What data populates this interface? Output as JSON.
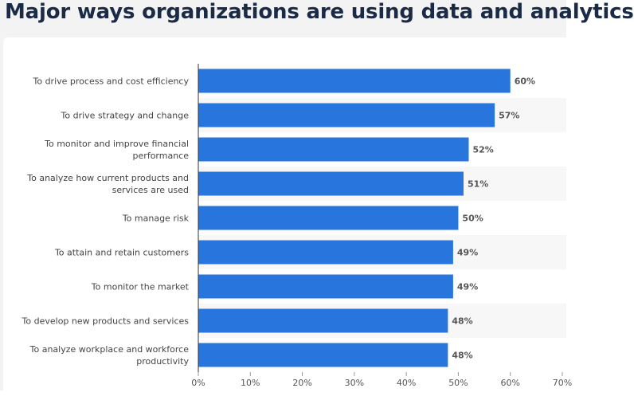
{
  "chart_data": {
    "type": "bar",
    "orientation": "horizontal",
    "title": "Major ways organizations are using data and analytics",
    "categories": [
      "To drive process and cost efficiency",
      "To drive strategy and change",
      "To monitor and improve financial performance",
      "To analyze how current products and services are used",
      "To manage risk",
      "To attain and retain customers",
      "To monitor the market",
      "To develop new products and services",
      "To analyze workplace and workforce productivity"
    ],
    "values": [
      60,
      57,
      52,
      51,
      50,
      49,
      49,
      48,
      48
    ],
    "value_labels": [
      "60%",
      "57%",
      "52%",
      "51%",
      "50%",
      "49%",
      "49%",
      "48%",
      "48%"
    ],
    "color": "#2876dd",
    "xlim": [
      0,
      70
    ],
    "xticks": [
      {
        "value": 0,
        "label": "0%"
      },
      {
        "value": 10,
        "label": "10%"
      },
      {
        "value": 20,
        "label": "20%"
      },
      {
        "value": 30,
        "label": "30%"
      },
      {
        "value": 40,
        "label": "40%"
      },
      {
        "value": 50,
        "label": "50%"
      },
      {
        "value": 60,
        "label": "60%"
      },
      {
        "value": 70,
        "label": "70%"
      }
    ]
  }
}
